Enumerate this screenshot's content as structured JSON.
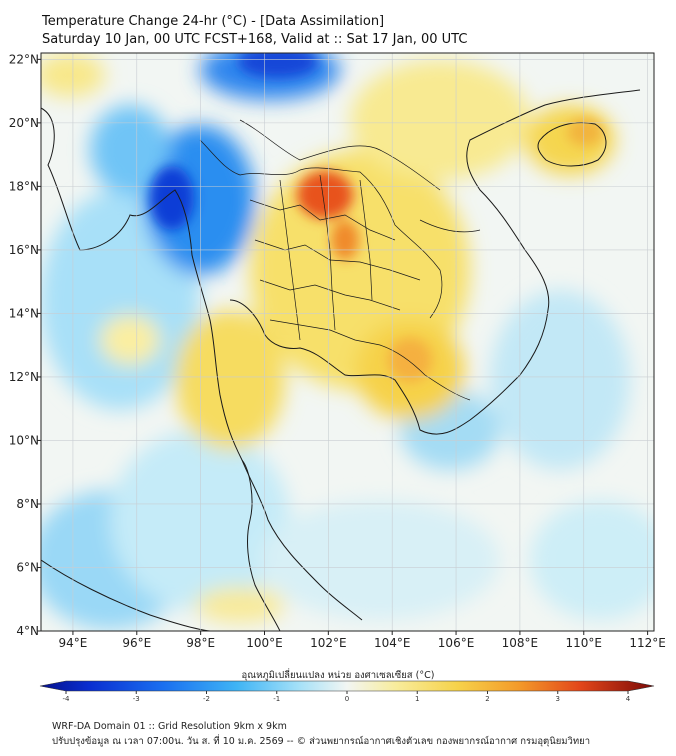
{
  "title": {
    "line1": "Temperature Change 24-hr (°C) - [Data Assimilation]",
    "line2": "Saturday 10 Jan, 00 UTC FCST+168, Valid at :: Sat 17 Jan, 00 UTC"
  },
  "map": {
    "lon_range": [
      93,
      112.2
    ],
    "lat_range": [
      4,
      22.2
    ],
    "x_ticks": [
      "94°E",
      "96°E",
      "98°E",
      "100°E",
      "102°E",
      "104°E",
      "106°E",
      "108°E",
      "110°E",
      "112°E"
    ],
    "y_ticks": [
      "22°N",
      "20°N",
      "18°N",
      "16°N",
      "14°N",
      "12°N",
      "10°N",
      "8°N",
      "6°N",
      "4°N"
    ],
    "colors": {
      "strong_cold": "#0a3cd6",
      "cold": "#1e8cf0",
      "cool": "#7cd0f6",
      "neutral": "#f2f6f3",
      "warm": "#f7e06a",
      "hot": "#f5a623",
      "very_hot": "#e8521d",
      "border": "#1a1a1a",
      "grid": "#c8cdd2"
    }
  },
  "colorbar": {
    "label": "อุณหภูมิเปลี่ยนแปลง หน่วย องศาเซลเซียส (°C)",
    "ticks": [
      "-4",
      "-3",
      "-2",
      "-1",
      "0",
      "1",
      "2",
      "3",
      "4"
    ],
    "min": -4,
    "max": 4
  },
  "footer": {
    "line1": "WRF-DA Domain 01 :: Grid Resolution 9km x 9km",
    "line2": "ปรับปรุงข้อมูล ณ เวลา 07:00น. วัน ส. ที่ 10 ม.ค. 2569 -- © ส่วนพยากรณ์อากาศเชิงตัวเลข กองพยากรณ์อากาศ กรมอุตุนิยมวิทยา"
  }
}
